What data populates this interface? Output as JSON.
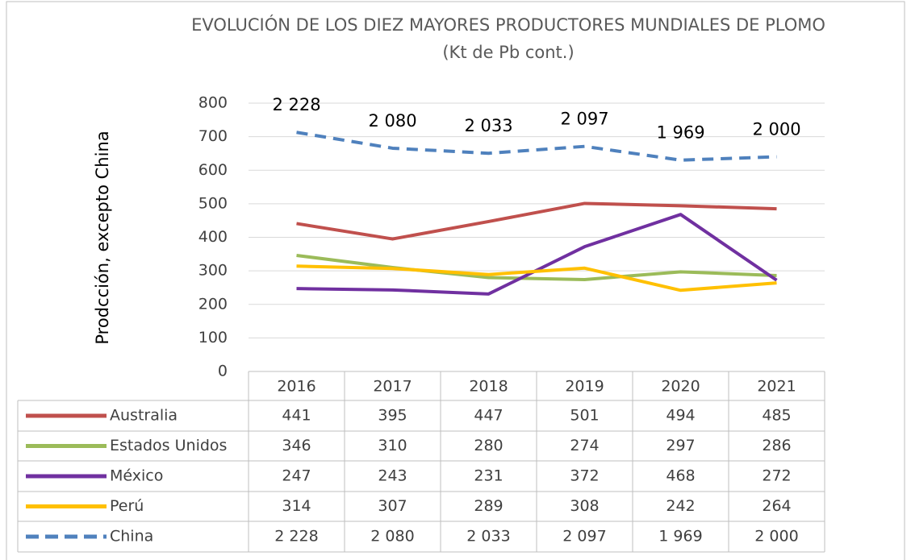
{
  "chart_data": {
    "type": "line",
    "title": "EVOLUCIÓN DE LOS DIEZ MAYORES PRODUCTORES MUNDIALES DE PLOMO (Kt de Pb cont.)",
    "y_label": "Prodcción, excepto China",
    "categories": [
      "2016",
      "2017",
      "2018",
      "2019",
      "2020",
      "2021"
    ],
    "series": [
      {
        "name": "Australia",
        "color": "#c0504d",
        "values": [
          441,
          395,
          447,
          501,
          494,
          485
        ]
      },
      {
        "name": "Estados Unidos",
        "color": "#9bbb59",
        "values": [
          346,
          310,
          280,
          274,
          297,
          286
        ]
      },
      {
        "name": "México",
        "color": "#7030a0",
        "values": [
          247,
          243,
          231,
          372,
          468,
          272
        ]
      },
      {
        "name": "Perú",
        "color": "#ffc000",
        "values": [
          314,
          307,
          289,
          308,
          242,
          264
        ]
      },
      {
        "name": "China",
        "color": "#4f81bd",
        "dashed": true,
        "axis": "y2",
        "values": [
          2228,
          2080,
          2033,
          2097,
          1969,
          2000
        ],
        "value_labels": [
          "2 228",
          "2 080",
          "2 033",
          "2 097",
          "1 969",
          "2 000"
        ]
      }
    ],
    "ylim": [
      0,
      800
    ],
    "yticks": [
      0,
      100,
      200,
      300,
      400,
      500,
      600,
      700,
      800
    ],
    "y2lim": [
      0,
      2500
    ],
    "grid": true,
    "data_table": true
  }
}
